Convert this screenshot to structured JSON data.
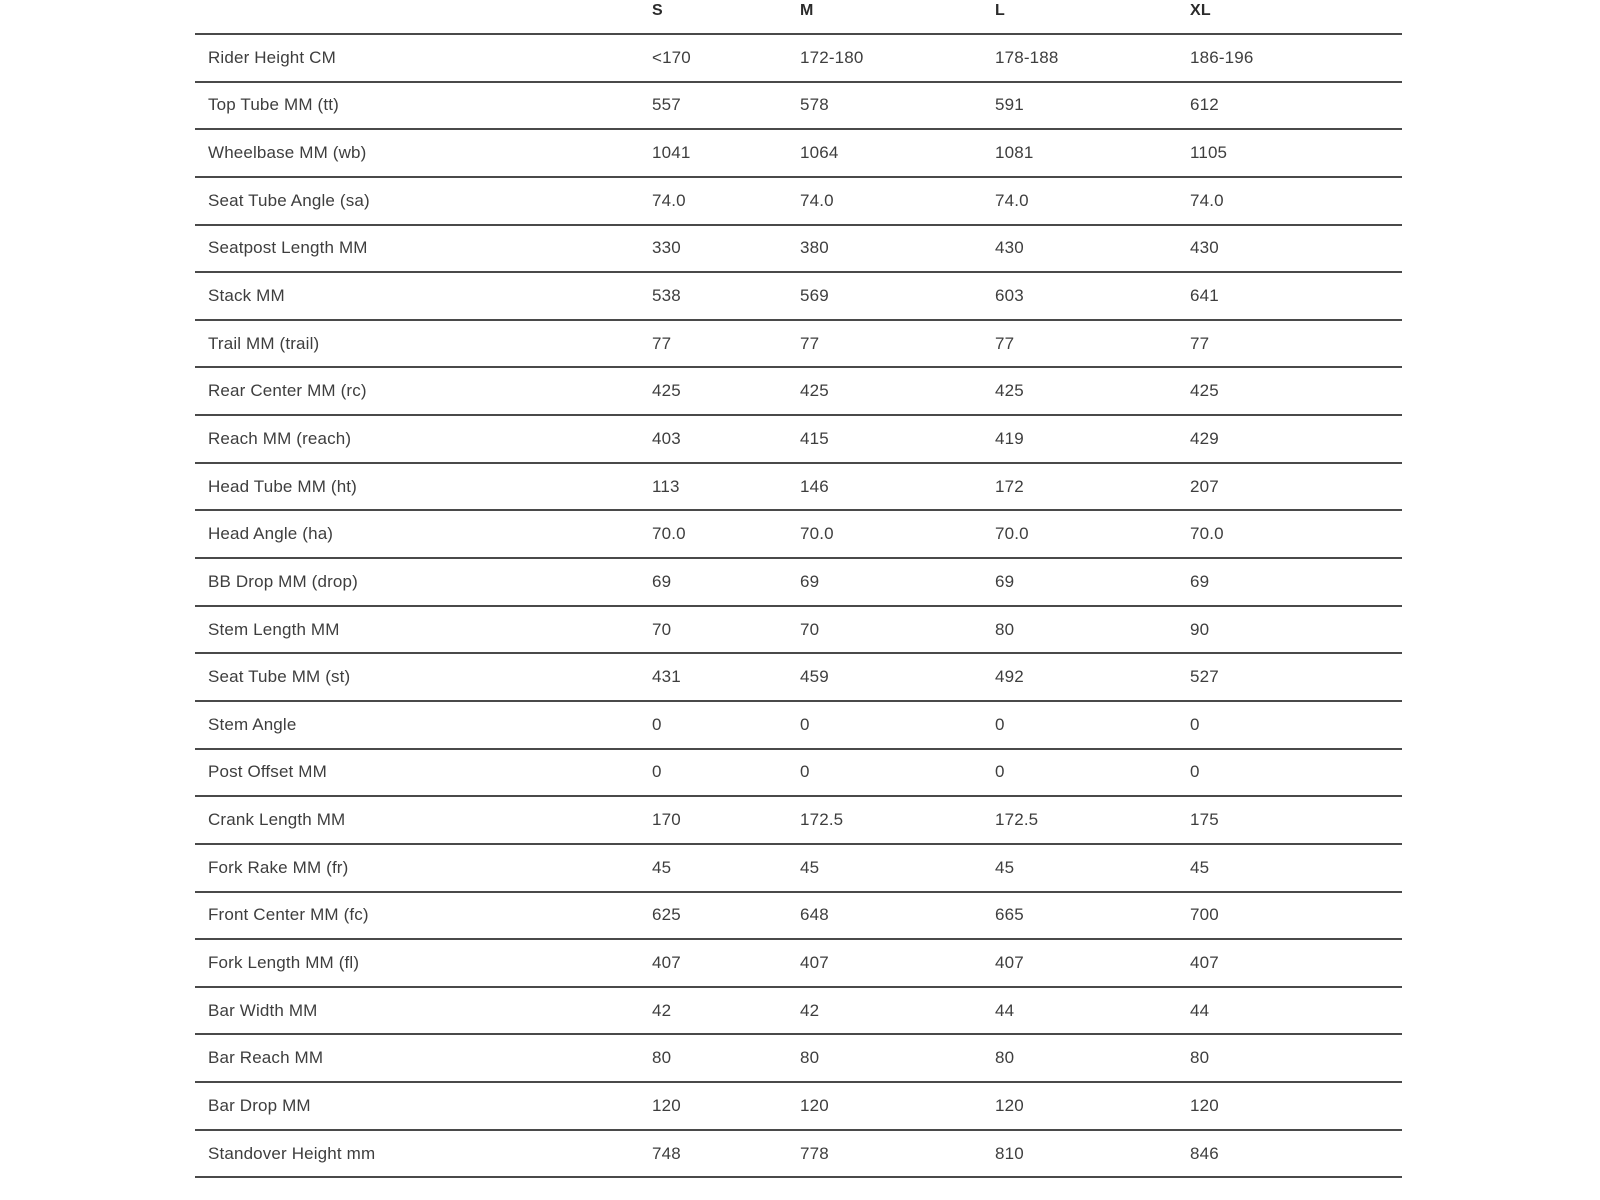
{
  "colors": {
    "border": "#4a4a4a",
    "text": "#3e3e3e",
    "header_text": "#2b2b2b",
    "background": "#ffffff"
  },
  "table": {
    "columns": [
      "S",
      "M",
      "L",
      "XL"
    ],
    "rows": [
      {
        "label": "Rider Height CM",
        "values": [
          "<170",
          "172-180",
          "178-188",
          "186-196"
        ]
      },
      {
        "label": "Top Tube MM (tt)",
        "values": [
          "557",
          "578",
          "591",
          "612"
        ]
      },
      {
        "label": "Wheelbase MM (wb)",
        "values": [
          "1041",
          "1064",
          "1081",
          "1105"
        ]
      },
      {
        "label": "Seat Tube Angle (sa)",
        "values": [
          "74.0",
          "74.0",
          "74.0",
          "74.0"
        ]
      },
      {
        "label": "Seatpost Length MM",
        "values": [
          "330",
          "380",
          "430",
          "430"
        ]
      },
      {
        "label": "Stack MM",
        "values": [
          "538",
          "569",
          "603",
          "641"
        ]
      },
      {
        "label": "Trail MM (trail)",
        "values": [
          "77",
          "77",
          "77",
          "77"
        ]
      },
      {
        "label": "Rear Center MM (rc)",
        "values": [
          "425",
          "425",
          "425",
          "425"
        ]
      },
      {
        "label": "Reach MM (reach)",
        "values": [
          "403",
          "415",
          "419",
          "429"
        ]
      },
      {
        "label": "Head Tube MM (ht)",
        "values": [
          "113",
          "146",
          "172",
          "207"
        ]
      },
      {
        "label": "Head Angle (ha)",
        "values": [
          "70.0",
          "70.0",
          "70.0",
          "70.0"
        ]
      },
      {
        "label": "BB Drop MM (drop)",
        "values": [
          "69",
          "69",
          "69",
          "69"
        ]
      },
      {
        "label": "Stem Length MM",
        "values": [
          "70",
          "70",
          "80",
          "90"
        ]
      },
      {
        "label": "Seat Tube MM (st)",
        "values": [
          "431",
          "459",
          "492",
          "527"
        ]
      },
      {
        "label": "Stem Angle",
        "values": [
          "0",
          "0",
          "0",
          "0"
        ]
      },
      {
        "label": "Post Offset MM",
        "values": [
          "0",
          "0",
          "0",
          "0"
        ]
      },
      {
        "label": "Crank Length MM",
        "values": [
          "170",
          "172.5",
          "172.5",
          "175"
        ]
      },
      {
        "label": "Fork Rake MM (fr)",
        "values": [
          "45",
          "45",
          "45",
          "45"
        ]
      },
      {
        "label": "Front Center MM (fc)",
        "values": [
          "625",
          "648",
          "665",
          "700"
        ]
      },
      {
        "label": "Fork Length MM (fl)",
        "values": [
          "407",
          "407",
          "407",
          "407"
        ]
      },
      {
        "label": "Bar Width MM",
        "values": [
          "42",
          "42",
          "44",
          "44"
        ]
      },
      {
        "label": "Bar Reach MM",
        "values": [
          "80",
          "80",
          "80",
          "80"
        ]
      },
      {
        "label": "Bar Drop MM",
        "values": [
          "120",
          "120",
          "120",
          "120"
        ]
      },
      {
        "label": "Standover Height mm",
        "values": [
          "748",
          "778",
          "810",
          "846"
        ]
      }
    ]
  }
}
